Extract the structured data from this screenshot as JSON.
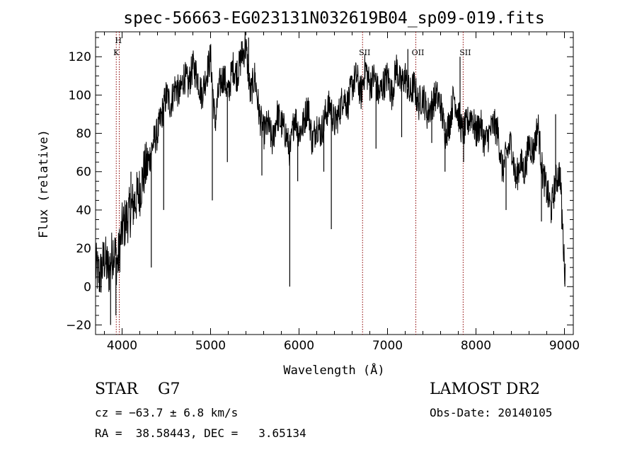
{
  "chart_data": {
    "type": "line",
    "title": "spec-56663-EG023131N032619B04_sp09-019.fits",
    "xlabel": "Wavelength (Å)",
    "ylabel": "Flux (relative)",
    "xlim": [
      3700,
      9100
    ],
    "ylim": [
      -25,
      133
    ],
    "x_ticks": [
      4000,
      5000,
      6000,
      7000,
      8000,
      9000
    ],
    "y_ticks": [
      -20,
      0,
      20,
      40,
      60,
      80,
      100,
      120
    ],
    "grid": false,
    "line_color": "#000000",
    "marker_color": "#8b0000",
    "series": [
      {
        "x": [
          3700,
          3750,
          3800,
          3850,
          3900,
          3950,
          4000,
          4050,
          4100,
          4150,
          4200,
          4250,
          4300,
          4350,
          4400,
          4450,
          4500,
          4550,
          4600,
          4650,
          4700,
          4750,
          4800,
          4850,
          4900,
          4950,
          5000,
          5050,
          5100,
          5150,
          5200,
          5250,
          5300,
          5350,
          5400,
          5450,
          5500,
          5550,
          5600,
          5650,
          5700,
          5750,
          5800,
          5850,
          5900,
          5950,
          6000,
          6050,
          6100,
          6150,
          6200,
          6250,
          6300,
          6350,
          6400,
          6450,
          6500,
          6550,
          6600,
          6650,
          6700,
          6750,
          6800,
          6850,
          6900,
          6950,
          7000,
          7050,
          7100,
          7150,
          7200,
          7250,
          7300,
          7350,
          7400,
          7450,
          7500,
          7550,
          7600,
          7650,
          7700,
          7750,
          7800,
          7850,
          7900,
          7950,
          8000,
          8050,
          8100,
          8150,
          8200,
          8250,
          8300,
          8350,
          8400,
          8450,
          8500,
          8550,
          8600,
          8650,
          8700,
          8750,
          8800,
          8850,
          8900,
          8950,
          9000
        ],
        "y": [
          10,
          5,
          15,
          8,
          20,
          12,
          30,
          35,
          40,
          45,
          50,
          60,
          65,
          75,
          80,
          90,
          100,
          95,
          105,
          100,
          110,
          105,
          115,
          110,
          100,
          110,
          120,
          85,
          105,
          110,
          100,
          115,
          110,
          120,
          125,
          100,
          110,
          90,
          80,
          85,
          75,
          90,
          85,
          80,
          70,
          90,
          80,
          85,
          95,
          75,
          85,
          80,
          90,
          95,
          85,
          90,
          100,
          95,
          105,
          110,
          100,
          115,
          105,
          110,
          100,
          105,
          110,
          100,
          115,
          105,
          110,
          100,
          105,
          95,
          100,
          90,
          95,
          100,
          95,
          80,
          85,
          100,
          90,
          80,
          85,
          90,
          80,
          85,
          75,
          80,
          85,
          80,
          60,
          70,
          75,
          55,
          65,
          60,
          75,
          70,
          85,
          60,
          50,
          40,
          55,
          60,
          10
        ]
      }
    ],
    "dips": [
      {
        "x": 3870,
        "y": -20
      },
      {
        "x": 3930,
        "y": -15
      },
      {
        "x": 4330,
        "y": 10
      },
      {
        "x": 4470,
        "y": 40
      },
      {
        "x": 5020,
        "y": 45
      },
      {
        "x": 5190,
        "y": 65
      },
      {
        "x": 5580,
        "y": 58
      },
      {
        "x": 5895,
        "y": 0
      },
      {
        "x": 5985,
        "y": 55
      },
      {
        "x": 6280,
        "y": 60
      },
      {
        "x": 6365,
        "y": 30
      },
      {
        "x": 6870,
        "y": 72
      },
      {
        "x": 7160,
        "y": 78
      },
      {
        "x": 7500,
        "y": 75
      },
      {
        "x": 7650,
        "y": 60
      },
      {
        "x": 7860,
        "y": 65
      },
      {
        "x": 8340,
        "y": 40
      },
      {
        "x": 8740,
        "y": 34
      },
      {
        "x": 8970,
        "y": 30
      },
      {
        "x": 9005,
        "y": 0
      }
    ],
    "peaks": [
      {
        "x": 4100,
        "y": 60
      },
      {
        "x": 5300,
        "y": 118
      },
      {
        "x": 5350,
        "y": 128
      },
      {
        "x": 5390,
        "y": 133
      },
      {
        "x": 5430,
        "y": 130
      },
      {
        "x": 7230,
        "y": 124
      },
      {
        "x": 7820,
        "y": 120
      },
      {
        "x": 8900,
        "y": 90
      }
    ],
    "line_markers": [
      {
        "x": 3934,
        "label1": "H",
        "label2": "K"
      },
      {
        "x": 3968
      },
      {
        "x": 6718,
        "label1": "SII"
      },
      {
        "x": 7320,
        "label1": "OII"
      },
      {
        "x": 7855,
        "label1": "SII"
      }
    ]
  },
  "info": {
    "class_line": "STAR    G7",
    "cz_line": "cz = −63.7 ± 6.8 km/s",
    "radec_line": "RA =  38.58443, DEC =   3.65134",
    "survey": "LAMOST DR2",
    "obs_date": "Obs-Date: 20140105"
  }
}
